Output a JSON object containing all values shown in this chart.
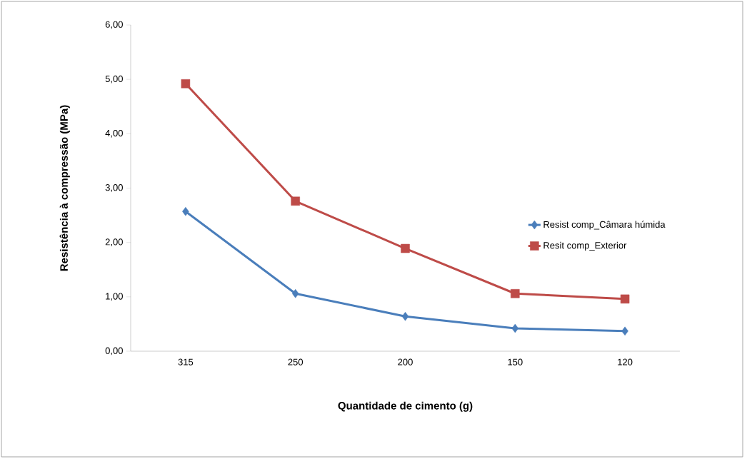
{
  "chart_data": {
    "type": "line",
    "xlabel": "Quantidade de cimento (g)",
    "ylabel": "Resistência à compressão (MPa)",
    "categories": [
      "315",
      "250",
      "200",
      "150",
      "120"
    ],
    "series": [
      {
        "name": "Resist comp_Câmara húmida",
        "color": "#4a7ebb",
        "marker": "diamond",
        "values": [
          2.57,
          1.06,
          0.64,
          0.42,
          0.37
        ]
      },
      {
        "name": "Resit comp_Exterior",
        "color": "#be4b48",
        "marker": "square",
        "values": [
          4.92,
          2.76,
          1.89,
          1.06,
          0.96
        ]
      }
    ],
    "ylim": [
      0,
      6
    ],
    "yticks": [
      {
        "value": 0,
        "label": "0,00"
      },
      {
        "value": 1,
        "label": "1,00"
      },
      {
        "value": 2,
        "label": "2,00"
      },
      {
        "value": 3,
        "label": "3,00"
      },
      {
        "value": 4,
        "label": "4,00"
      },
      {
        "value": 5,
        "label": "5,00"
      },
      {
        "value": 6,
        "label": "6,00"
      }
    ],
    "grid": false,
    "legend": "right",
    "line_style": "solid"
  }
}
